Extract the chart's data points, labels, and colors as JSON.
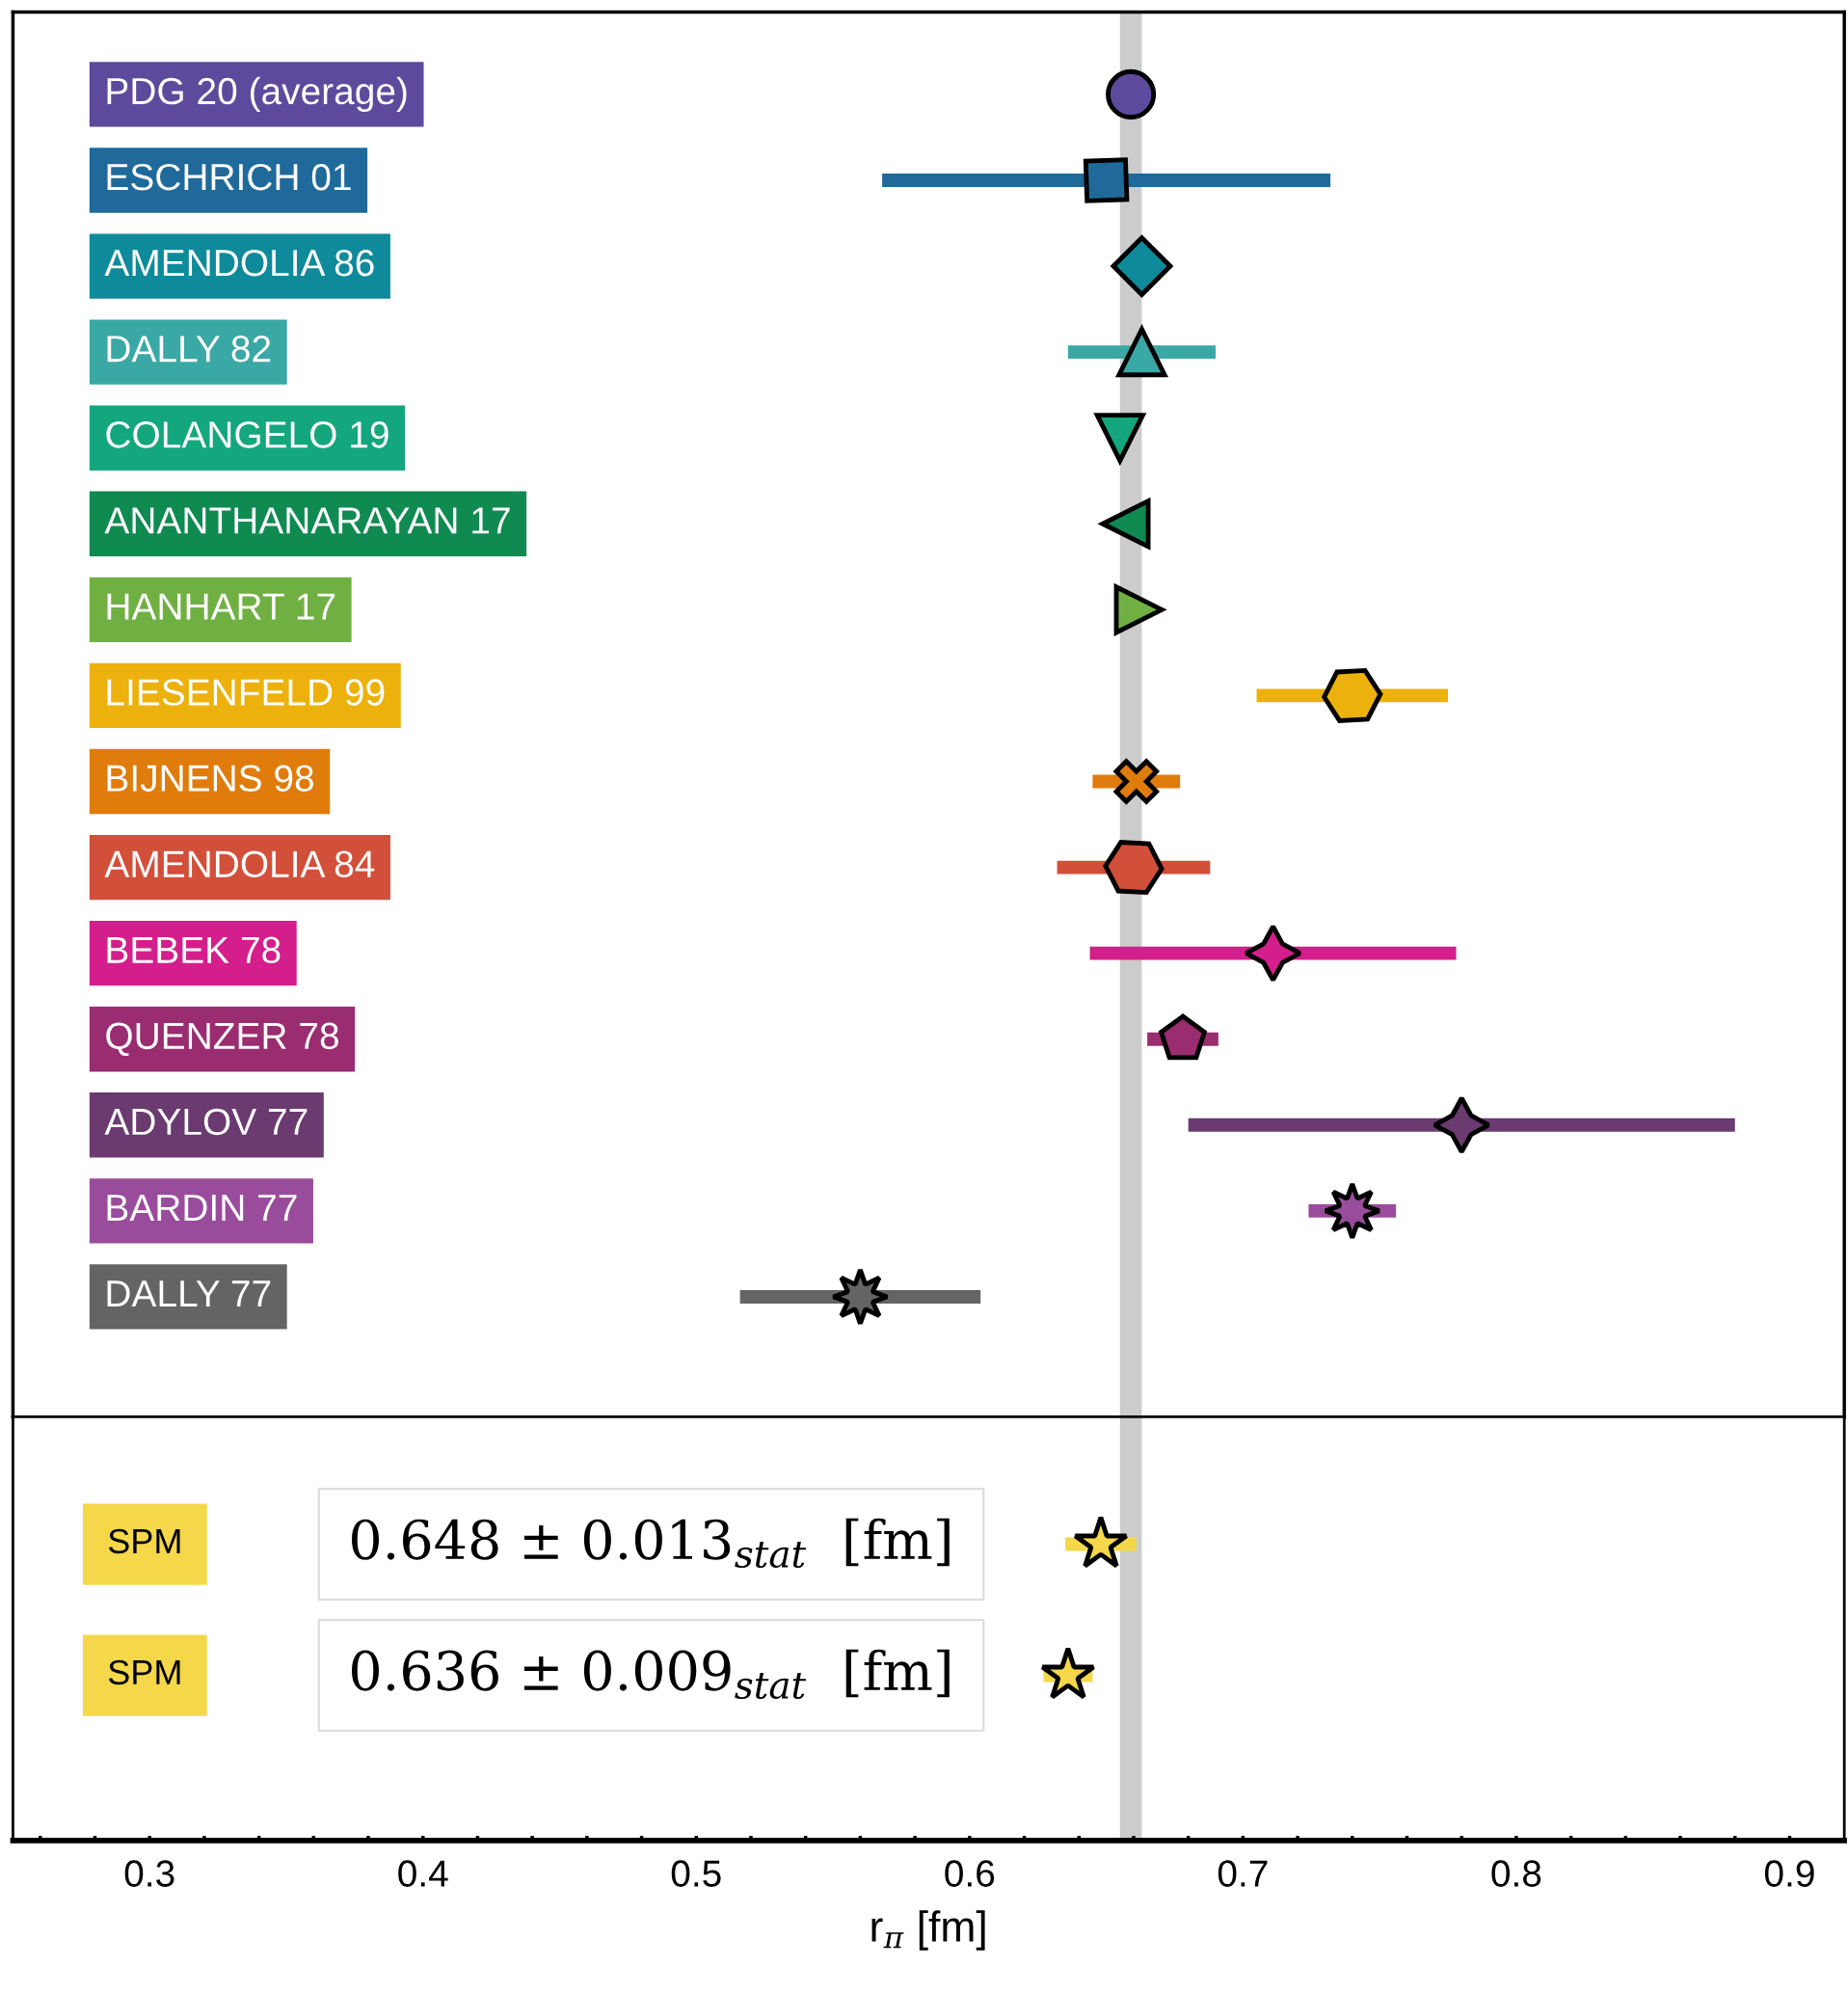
{
  "chart_data": [
    {
      "type": "scatter",
      "orientation": "horizontal",
      "categories": [
        "PDG 20 (average)",
        "ESCHRICH 01",
        "AMENDOLIA 86",
        "DALLY 82",
        "COLANGELO 19",
        "ANANTHANARAYAN 17",
        "HANHART 17",
        "LIESENFELD 99",
        "BIJNENS 98",
        "AMENDOLIA 84",
        "BEBEK 78",
        "QUENZER 78",
        "ADYLOV 77",
        "BARDIN 77",
        "DALLY 77"
      ],
      "values": [
        0.659,
        0.65,
        0.663,
        0.663,
        0.655,
        0.657,
        0.662,
        0.74,
        0.661,
        0.66,
        0.711,
        0.678,
        0.78,
        0.74,
        0.56
      ],
      "errors": [
        null,
        0.082,
        0.006,
        0.027,
        null,
        null,
        null,
        0.035,
        0.016,
        0.028,
        0.067,
        0.013,
        0.1,
        0.016,
        0.044
      ],
      "colors": [
        "#5e4a9c",
        "#1f6a9a",
        "#0e8a9a",
        "#3aa8a5",
        "#14a67c",
        "#0f8a50",
        "#70b043",
        "#ecb10c",
        "#e07c0c",
        "#d24f3a",
        "#d41e8c",
        "#9a2c70",
        "#6a3a70",
        "#9a4c9c",
        "#646464"
      ],
      "marker": [
        "circle",
        "square",
        "diamond",
        "triangle",
        "triangle-down",
        "triangle-left",
        "triangle-right",
        "hexagon",
        "cross",
        "hexagon-flat",
        "star4",
        "pentagon",
        "star4",
        "asterisk",
        "asterisk"
      ],
      "xlim": [
        0.25,
        0.92
      ],
      "tick_labels": false,
      "bands": [
        {
          "axis": "x",
          "from": 0.655,
          "to": 0.663,
          "color": "#cccccc"
        }
      ]
    },
    {
      "type": "scatter",
      "orientation": "horizontal",
      "categories": [
        "SPM",
        "SPM"
      ],
      "values": [
        0.648,
        0.636
      ],
      "errors": [
        0.013,
        0.009
      ],
      "colors": [
        "#f5d84a",
        "#f5d84a"
      ],
      "marker": [
        "star",
        "star"
      ],
      "annotations": [
        "0.648 ± 0.013$_{stat}$  [fm]",
        "0.636 ± 0.009$_{stat}$  [fm]"
      ],
      "xlabel": "r$_{π}$ [fm]",
      "xlim": [
        0.25,
        0.92
      ],
      "xticks": [
        {
          "value": 0.26,
          "label": null
        },
        {
          "value": 0.28,
          "label": null
        },
        0.3,
        {
          "value": 0.32,
          "label": null
        },
        {
          "value": 0.34,
          "label": null
        },
        {
          "value": 0.36,
          "label": null
        },
        {
          "value": 0.38,
          "label": null
        },
        0.4,
        {
          "value": 0.42,
          "label": null
        },
        {
          "value": 0.44,
          "label": null
        },
        {
          "value": 0.46,
          "label": null
        },
        {
          "value": 0.48,
          "label": null
        },
        0.5,
        {
          "value": 0.52,
          "label": null
        },
        {
          "value": 0.54,
          "label": null
        },
        {
          "value": 0.56,
          "label": null
        },
        {
          "value": 0.58,
          "label": null
        },
        0.6,
        {
          "value": 0.62,
          "label": null
        },
        {
          "value": 0.64,
          "label": null
        },
        {
          "value": 0.66,
          "label": null
        },
        {
          "value": 0.68,
          "label": null
        },
        0.7,
        {
          "value": 0.72,
          "label": null
        },
        {
          "value": 0.74,
          "label": null
        },
        {
          "value": 0.76,
          "label": null
        },
        {
          "value": 0.78,
          "label": null
        },
        0.8,
        {
          "value": 0.82,
          "label": null
        },
        {
          "value": 0.84,
          "label": null
        },
        {
          "value": 0.86,
          "label": null
        },
        {
          "value": 0.88,
          "label": null
        },
        0.9
      ],
      "tick_labels": "x",
      "bands": [
        {
          "axis": "x",
          "from": 0.655,
          "to": 0.663,
          "color": "#cccccc"
        }
      ]
    }
  ]
}
